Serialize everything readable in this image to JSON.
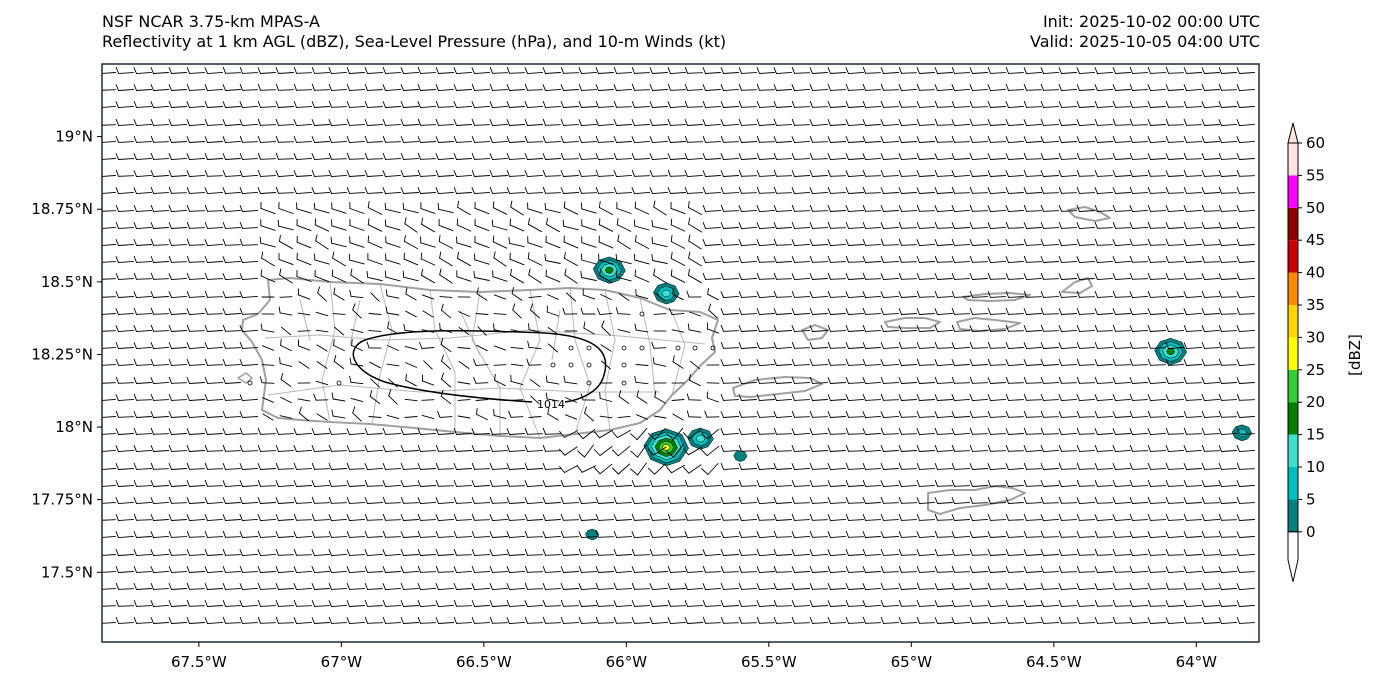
{
  "title": {
    "model": "NSF NCAR 3.75-km MPAS-A",
    "fields": "Reflectivity at 1 km AGL (dBZ), Sea-Level Pressure (hPa), and 10-m Winds (kt)",
    "init": "Init: 2025-10-02 00:00 UTC",
    "valid": "Valid: 2025-10-05 04:00 UTC"
  },
  "map": {
    "lon_range": [
      -67.84,
      -63.78
    ],
    "lat_range": [
      17.26,
      19.25
    ],
    "lon_ticks": [
      {
        "value": -67.5,
        "label": "67.5°W"
      },
      {
        "value": -67.0,
        "label": "67°W"
      },
      {
        "value": -66.5,
        "label": "66.5°W"
      },
      {
        "value": -66.0,
        "label": "66°W"
      },
      {
        "value": -65.5,
        "label": "65.5°W"
      },
      {
        "value": -65.0,
        "label": "65°W"
      },
      {
        "value": -64.5,
        "label": "64.5°W"
      },
      {
        "value": -64.0,
        "label": "64°W"
      }
    ],
    "lat_ticks": [
      {
        "value": 19.0,
        "label": "19°N"
      },
      {
        "value": 18.75,
        "label": "18.75°N"
      },
      {
        "value": 18.5,
        "label": "18.5°N"
      },
      {
        "value": 18.25,
        "label": "18.25°N"
      },
      {
        "value": 18.0,
        "label": "18°N"
      },
      {
        "value": 17.75,
        "label": "17.75°N"
      },
      {
        "value": 17.5,
        "label": "17.5°N"
      }
    ],
    "isobars": [
      {
        "value": 1014,
        "label": "1014"
      }
    ],
    "echoes": [
      {
        "lon": -66.06,
        "lat": 18.54,
        "max_dbz": 20
      },
      {
        "lon": -65.86,
        "lat": 18.46,
        "max_dbz": 15
      },
      {
        "lon": -64.09,
        "lat": 18.26,
        "max_dbz": 20
      },
      {
        "lon": -65.86,
        "lat": 17.93,
        "max_dbz": 30
      },
      {
        "lon": -65.74,
        "lat": 17.96,
        "max_dbz": 15
      },
      {
        "lon": -63.84,
        "lat": 17.98,
        "max_dbz": 10
      },
      {
        "lon": -66.12,
        "lat": 17.63,
        "max_dbz": 5
      },
      {
        "lon": -65.6,
        "lat": 17.9,
        "max_dbz": 5
      }
    ],
    "colors": {
      "coastline": "#a0a0a0",
      "barbs": "#000000",
      "isobar": "#000000",
      "frame": "#1b2a3a"
    }
  },
  "colorbar": {
    "label": "[dBZ]",
    "ticks": [
      "0",
      "5",
      "10",
      "15",
      "20",
      "25",
      "30",
      "35",
      "40",
      "45",
      "50",
      "55",
      "60"
    ],
    "colors": [
      "#ffffff",
      "#008080",
      "#00bfbf",
      "#40e0d0",
      "#008000",
      "#32cd32",
      "#ffff00",
      "#ffd700",
      "#ff8c00",
      "#cc0000",
      "#8b0000",
      "#ff00ff",
      "#ffe4e1"
    ]
  }
}
